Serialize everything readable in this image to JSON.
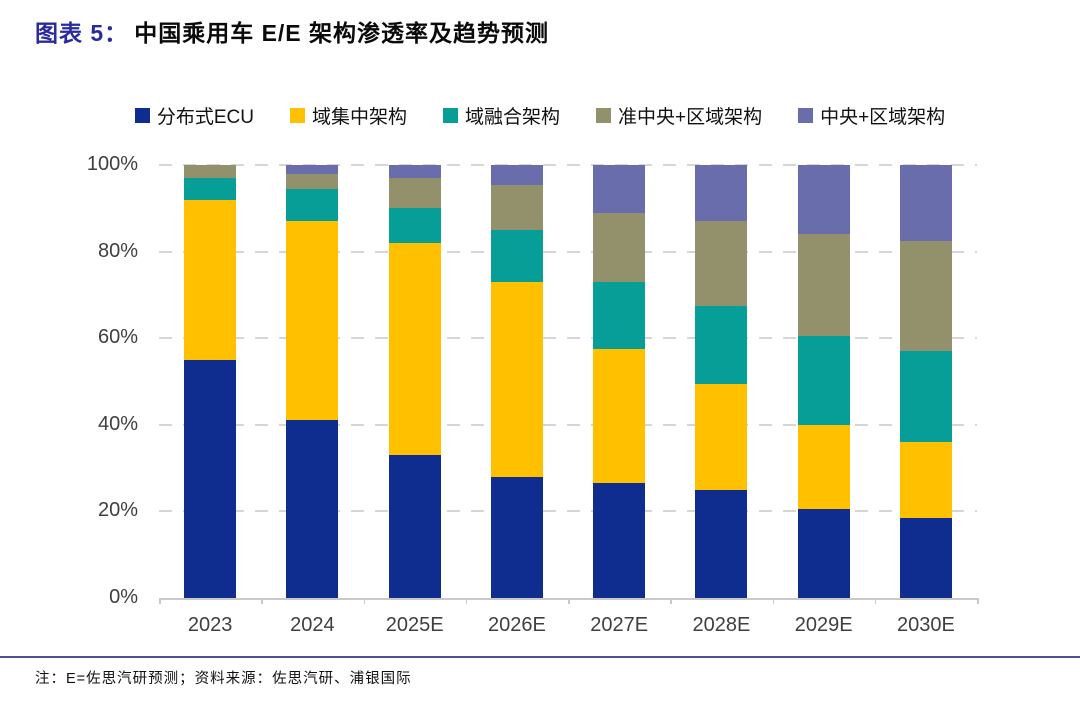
{
  "title": {
    "prefix": "图表 5：",
    "text": "中国乘用车 E/E 架构渗透率及趋势预测"
  },
  "footnote": "注：E=佐思汽研预测；资料来源：佐思汽研、浦银国际",
  "colors": {
    "title_prefix": "#2b2a9d",
    "grid": "#d6d6d6",
    "axis": "#c9c9c9",
    "footer_rule": "#50509a"
  },
  "chart_data": {
    "type": "bar",
    "stacked": true,
    "title": "中国乘用车 E/E 架构渗透率及趋势预测",
    "xlabel": "",
    "ylabel": "",
    "ylim": [
      0,
      100
    ],
    "grid": "horizontal-dashed",
    "legend_position": "top",
    "categories": [
      "2023",
      "2024",
      "2025E",
      "2026E",
      "2027E",
      "2028E",
      "2029E",
      "2030E"
    ],
    "yticks": [
      {
        "v": 0,
        "label": "0%"
      },
      {
        "v": 20,
        "label": "20%"
      },
      {
        "v": 40,
        "label": "40%"
      },
      {
        "v": 60,
        "label": "60%"
      },
      {
        "v": 80,
        "label": "80%"
      },
      {
        "v": 100,
        "label": "100%"
      }
    ],
    "series": [
      {
        "name": "分布式ECU",
        "color": "#0e2d8e",
        "values": [
          55,
          41,
          33,
          28,
          26.5,
          25,
          20.5,
          18.5
        ]
      },
      {
        "name": "域集中架构",
        "color": "#ffc000",
        "values": [
          37,
          46,
          49,
          45,
          31,
          24.5,
          19.5,
          17.5
        ]
      },
      {
        "name": "域融合架构",
        "color": "#089e98",
        "values": [
          5,
          7.5,
          8,
          12,
          15.5,
          18,
          20.5,
          21
        ]
      },
      {
        "name": "准中央+区域架构",
        "color": "#93916b",
        "values": [
          3,
          3.5,
          7,
          10.5,
          16,
          19.5,
          23.5,
          25.5
        ]
      },
      {
        "name": "中央+区域架构",
        "color": "#6a6dab",
        "values": [
          0,
          2,
          3,
          4.5,
          11,
          13,
          16,
          17.5
        ]
      }
    ]
  }
}
